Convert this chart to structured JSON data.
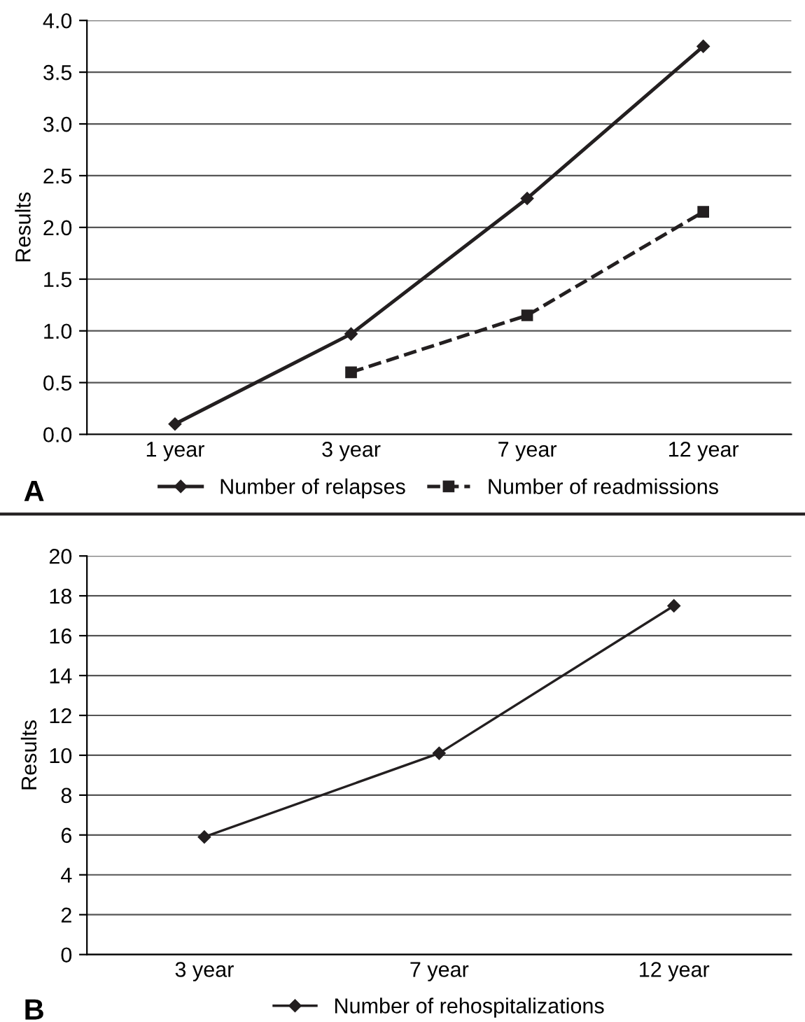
{
  "chart_data": [
    {
      "type": "line",
      "ylabel": "Results",
      "categories": [
        "1 year",
        "3 year",
        "7 year",
        "12 year"
      ],
      "ylim": [
        0,
        4
      ],
      "yticks": [
        {
          "value": 0,
          "label": "0.0"
        },
        {
          "value": 0.5,
          "label": "0.5"
        },
        {
          "value": 1,
          "label": "1.0"
        },
        {
          "value": 1.5,
          "label": "1.5"
        },
        {
          "value": 2,
          "label": "2.0"
        },
        {
          "value": 2.5,
          "label": "2.5"
        },
        {
          "value": 3,
          "label": "3.0"
        },
        {
          "value": 3.5,
          "label": "3.5"
        },
        {
          "value": 4,
          "label": "4.0"
        }
      ],
      "grid": "y",
      "legend": "bottom",
      "annotations": [
        "A"
      ],
      "series": [
        {
          "name": "Number of relapses",
          "color": "#231f20",
          "values": [
            0.1,
            0.97,
            2.28,
            3.75
          ],
          "marker": "diamond",
          "line_style": "solid"
        },
        {
          "name": "Number of readmissions",
          "color": "#231f20",
          "values": [
            null,
            0.6,
            1.15,
            2.15
          ],
          "marker": "square",
          "line_style": "dashed"
        }
      ]
    },
    {
      "type": "line",
      "ylabel": "Results",
      "categories": [
        "3 year",
        "7 year",
        "12 year"
      ],
      "ylim": [
        0,
        20
      ],
      "yticks": [
        0,
        2,
        4,
        6,
        8,
        10,
        12,
        14,
        16,
        18,
        20
      ],
      "grid": "y",
      "legend": "bottom",
      "annotations": [
        "B"
      ],
      "series": [
        {
          "name": "Number of rehospitalizations",
          "color": "#231f20",
          "values": [
            5.9,
            10.1,
            17.5
          ],
          "marker": "diamond",
          "line_style": "solid"
        }
      ]
    }
  ]
}
